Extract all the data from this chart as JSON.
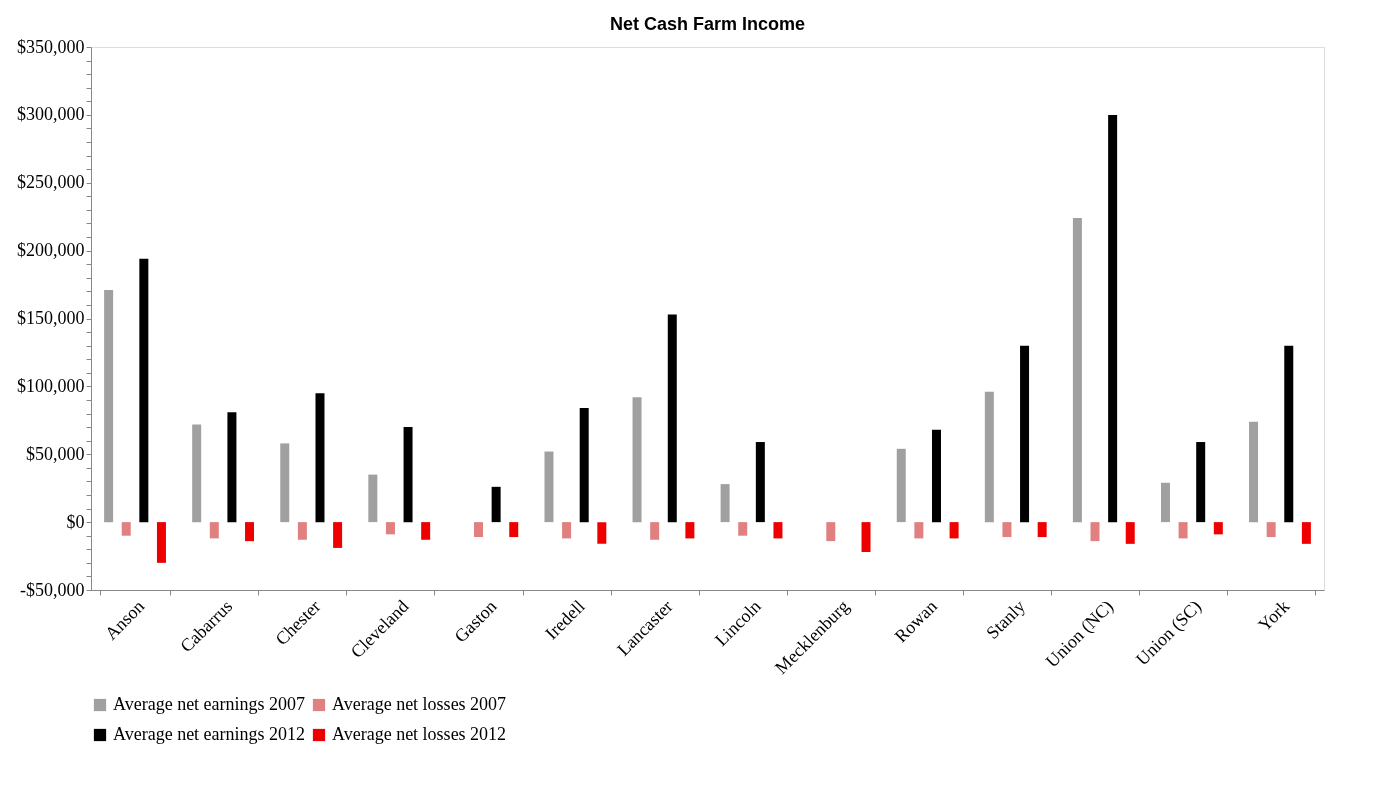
{
  "chart_data": {
    "type": "bar",
    "title": "Net Cash Farm Income",
    "categories": [
      "Anson",
      "Cabarrus",
      "Chester",
      "Cleveland",
      "Gaston",
      "Iredell",
      "Lancaster",
      "Lincoln",
      "Mecklenburg",
      "Rowan",
      "Stanly",
      "Union (NC)",
      "Union (SC)",
      "York"
    ],
    "series": [
      {
        "name": "Average net earnings 2007",
        "color": "#a0a0a0",
        "values": [
          171000,
          72000,
          58000,
          35000,
          null,
          52000,
          92000,
          28000,
          null,
          54000,
          96000,
          224000,
          29000,
          74000
        ]
      },
      {
        "name": "Average net losses 2007",
        "color": "#e08080",
        "values": [
          -10000,
          -12000,
          -13000,
          -9000,
          -11000,
          -12000,
          -13000,
          -10000,
          -14000,
          -12000,
          -11000,
          -14000,
          -12000,
          -11000
        ]
      },
      {
        "name": "Average net earnings 2012",
        "color": "#000000",
        "values": [
          194000,
          81000,
          95000,
          70000,
          26000,
          84000,
          153000,
          59000,
          null,
          68000,
          130000,
          300000,
          59000,
          130000
        ]
      },
      {
        "name": "Average net losses 2012",
        "color": "#ee0000",
        "values": [
          -30000,
          -14000,
          -19000,
          -13000,
          -11000,
          -16000,
          -12000,
          -12000,
          -22000,
          -12000,
          -11000,
          -16000,
          -9000,
          -16000
        ]
      }
    ],
    "ylim": [
      -50000,
      350000
    ],
    "yticks": [
      {
        "value": -50000,
        "label": "-$50,000"
      },
      {
        "value": -40000,
        "label": null
      },
      {
        "value": -30000,
        "label": null
      },
      {
        "value": -20000,
        "label": null
      },
      {
        "value": -10000,
        "label": null
      },
      {
        "value": 0,
        "label": "$0"
      },
      {
        "value": 10000,
        "label": null
      },
      {
        "value": 20000,
        "label": null
      },
      {
        "value": 30000,
        "label": null
      },
      {
        "value": 40000,
        "label": null
      },
      {
        "value": 50000,
        "label": "$50,000"
      },
      {
        "value": 60000,
        "label": null
      },
      {
        "value": 70000,
        "label": null
      },
      {
        "value": 80000,
        "label": null
      },
      {
        "value": 90000,
        "label": null
      },
      {
        "value": 100000,
        "label": "$100,000"
      },
      {
        "value": 110000,
        "label": null
      },
      {
        "value": 120000,
        "label": null
      },
      {
        "value": 130000,
        "label": null
      },
      {
        "value": 140000,
        "label": null
      },
      {
        "value": 150000,
        "label": "$150,000"
      },
      {
        "value": 160000,
        "label": null
      },
      {
        "value": 170000,
        "label": null
      },
      {
        "value": 180000,
        "label": null
      },
      {
        "value": 190000,
        "label": null
      },
      {
        "value": 200000,
        "label": "$200,000"
      },
      {
        "value": 210000,
        "label": null
      },
      {
        "value": 220000,
        "label": null
      },
      {
        "value": 230000,
        "label": null
      },
      {
        "value": 240000,
        "label": null
      },
      {
        "value": 250000,
        "label": "$250,000"
      },
      {
        "value": 260000,
        "label": null
      },
      {
        "value": 270000,
        "label": null
      },
      {
        "value": 280000,
        "label": null
      },
      {
        "value": 290000,
        "label": null
      },
      {
        "value": 300000,
        "label": "$300,000"
      },
      {
        "value": 310000,
        "label": null
      },
      {
        "value": 320000,
        "label": null
      },
      {
        "value": 330000,
        "label": null
      },
      {
        "value": 340000,
        "label": null
      },
      {
        "value": 350000,
        "label": "$350,000"
      }
    ],
    "grid": false,
    "legend": "bottom"
  }
}
